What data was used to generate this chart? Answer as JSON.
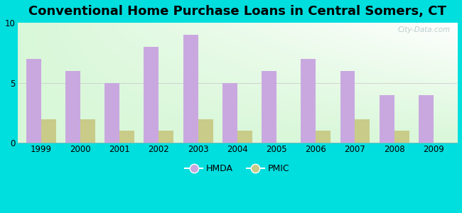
{
  "title": "Conventional Home Purchase Loans in Central Somers, CT",
  "years": [
    1999,
    2000,
    2001,
    2002,
    2003,
    2004,
    2005,
    2006,
    2007,
    2008,
    2009
  ],
  "hmda": [
    7,
    6,
    5,
    8,
    9,
    5,
    6,
    7,
    6,
    4,
    4
  ],
  "pmic": [
    2,
    2,
    1,
    1,
    2,
    1,
    0,
    1,
    2,
    1,
    0
  ],
  "hmda_color": "#c9a8e0",
  "pmic_color": "#c8cc88",
  "ylim": [
    0,
    10
  ],
  "yticks": [
    0,
    5,
    10
  ],
  "outer_bg": "#00dede",
  "bar_width": 0.38,
  "title_fontsize": 13,
  "watermark": "City-Data.com"
}
